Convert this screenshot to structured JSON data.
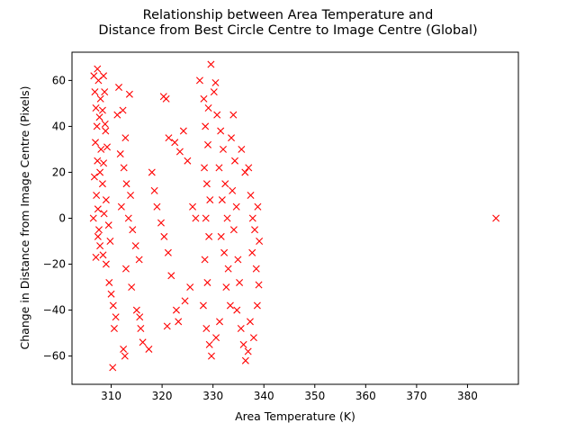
{
  "chart_data": {
    "type": "scatter",
    "title_lines": [
      "Relationship between Area Temperature and",
      "Distance from Best Circle Centre to Image Centre (Global)"
    ],
    "xlabel": "Area Temperature (K)",
    "ylabel": "Change in Distance from Image Centre (Pixels)",
    "xlim": [
      302.3,
      390.0
    ],
    "ylim": [
      -72.3,
      72.3
    ],
    "x_ticks": [
      310,
      320,
      330,
      340,
      350,
      360,
      370,
      380
    ],
    "y_ticks": [
      -60,
      -40,
      -20,
      0,
      20,
      40,
      60
    ],
    "grid": false,
    "marker": "x",
    "marker_color": "#ff0000",
    "series": [
      {
        "points": [
          [
            306.6,
            62
          ],
          [
            306.8,
            55
          ],
          [
            307.0,
            48
          ],
          [
            307.2,
            40
          ],
          [
            306.9,
            33
          ],
          [
            307.3,
            25
          ],
          [
            306.7,
            18
          ],
          [
            307.1,
            10
          ],
          [
            307.4,
            4
          ],
          [
            306.5,
            0
          ],
          [
            307.6,
            -5
          ],
          [
            307.8,
            -12
          ],
          [
            307.0,
            -17
          ],
          [
            307.5,
            60
          ],
          [
            307.3,
            65
          ],
          [
            307.9,
            52
          ],
          [
            307.7,
            44
          ],
          [
            308.0,
            30
          ],
          [
            307.8,
            20
          ],
          [
            307.4,
            -8
          ],
          [
            308.5,
            62
          ],
          [
            308.7,
            55
          ],
          [
            308.3,
            47
          ],
          [
            308.8,
            41
          ],
          [
            308.9,
            38
          ],
          [
            309.2,
            31
          ],
          [
            308.5,
            24
          ],
          [
            308.3,
            15
          ],
          [
            309.0,
            8
          ],
          [
            308.6,
            2
          ],
          [
            309.5,
            -3
          ],
          [
            309.8,
            -10
          ],
          [
            308.4,
            -16
          ],
          [
            309.0,
            -20
          ],
          [
            309.6,
            -28
          ],
          [
            310.0,
            -33
          ],
          [
            310.4,
            -38
          ],
          [
            310.9,
            -43
          ],
          [
            310.6,
            -48
          ],
          [
            310.3,
            -65
          ],
          [
            311.5,
            57
          ],
          [
            312.3,
            47
          ],
          [
            311.2,
            45
          ],
          [
            312.8,
            35
          ],
          [
            313.6,
            54
          ],
          [
            311.8,
            28
          ],
          [
            312.5,
            22
          ],
          [
            313.0,
            15
          ],
          [
            313.8,
            10
          ],
          [
            312.0,
            5
          ],
          [
            313.4,
            0
          ],
          [
            314.2,
            -5
          ],
          [
            314.8,
            -12
          ],
          [
            315.5,
            -18
          ],
          [
            312.9,
            -22
          ],
          [
            314.0,
            -30
          ],
          [
            315.0,
            -40
          ],
          [
            315.6,
            -43
          ],
          [
            312.4,
            -57
          ],
          [
            312.7,
            -60
          ],
          [
            316.2,
            -54
          ],
          [
            315.8,
            -48
          ],
          [
            317.4,
            -57
          ],
          [
            318.0,
            20
          ],
          [
            318.5,
            12
          ],
          [
            319.0,
            5
          ],
          [
            319.8,
            -2
          ],
          [
            320.4,
            -8
          ],
          [
            321.2,
            -15
          ],
          [
            321.8,
            -25
          ],
          [
            320.3,
            53
          ],
          [
            320.8,
            52
          ],
          [
            321.3,
            35
          ],
          [
            322.5,
            33
          ],
          [
            324.2,
            38
          ],
          [
            323.5,
            29
          ],
          [
            325.0,
            25
          ],
          [
            321.0,
            -47
          ],
          [
            322.8,
            -40
          ],
          [
            324.5,
            -36
          ],
          [
            323.2,
            -45
          ],
          [
            325.5,
            -30
          ],
          [
            326.0,
            5
          ],
          [
            326.6,
            0
          ],
          [
            327.4,
            60
          ],
          [
            328.2,
            52
          ],
          [
            329.6,
            67
          ],
          [
            330.2,
            55
          ],
          [
            330.5,
            59
          ],
          [
            329.1,
            48
          ],
          [
            328.5,
            40
          ],
          [
            329.0,
            32
          ],
          [
            328.3,
            22
          ],
          [
            328.8,
            15
          ],
          [
            329.4,
            8
          ],
          [
            328.6,
            0
          ],
          [
            329.2,
            -8
          ],
          [
            328.4,
            -18
          ],
          [
            328.9,
            -28
          ],
          [
            328.1,
            -38
          ],
          [
            328.7,
            -48
          ],
          [
            329.3,
            -55
          ],
          [
            329.7,
            -60
          ],
          [
            330.6,
            -52
          ],
          [
            331.3,
            -45
          ],
          [
            330.8,
            45
          ],
          [
            331.5,
            38
          ],
          [
            332.0,
            30
          ],
          [
            331.2,
            22
          ],
          [
            332.4,
            15
          ],
          [
            331.8,
            8
          ],
          [
            332.8,
            0
          ],
          [
            331.6,
            -8
          ],
          [
            332.2,
            -15
          ],
          [
            333.0,
            -22
          ],
          [
            332.6,
            -30
          ],
          [
            333.4,
            -38
          ],
          [
            334.0,
            45
          ],
          [
            333.6,
            35
          ],
          [
            334.3,
            25
          ],
          [
            333.8,
            12
          ],
          [
            334.6,
            5
          ],
          [
            334.1,
            -5
          ],
          [
            334.9,
            -18
          ],
          [
            335.2,
            -28
          ],
          [
            334.7,
            -40
          ],
          [
            335.5,
            -48
          ],
          [
            336.0,
            -55
          ],
          [
            336.4,
            -62
          ],
          [
            336.9,
            -58
          ],
          [
            335.6,
            30
          ],
          [
            336.3,
            20
          ],
          [
            337.0,
            22
          ],
          [
            337.4,
            10
          ],
          [
            337.8,
            0
          ],
          [
            338.2,
            -5
          ],
          [
            337.7,
            -15
          ],
          [
            338.5,
            -22
          ],
          [
            339.0,
            -29
          ],
          [
            338.7,
            -38
          ],
          [
            337.3,
            -45
          ],
          [
            338.0,
            -52
          ],
          [
            338.8,
            5
          ],
          [
            339.1,
            -10
          ],
          [
            385.6,
            0
          ]
        ]
      }
    ]
  }
}
